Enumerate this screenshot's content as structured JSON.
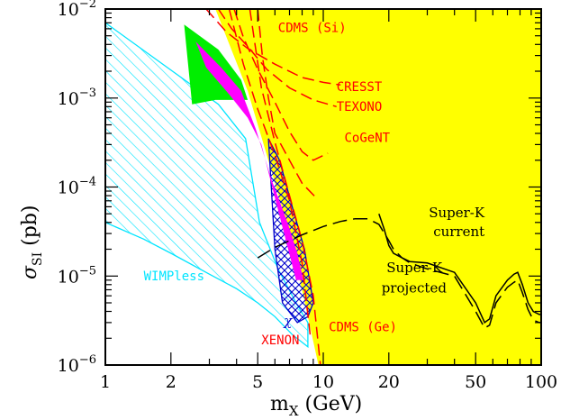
{
  "chart_data": {
    "type": "line",
    "xscale": "log",
    "yscale": "log",
    "xlim": [
      1,
      100
    ],
    "ylim": [
      1e-06,
      0.01
    ],
    "xlabel": "m_X (GeV)",
    "ylabel": "σ_SI (pb)",
    "x_ticks": [
      {
        "value": 1,
        "label": "1"
      },
      {
        "value": 2,
        "label": "2"
      },
      {
        "value": 5,
        "label": "5"
      },
      {
        "value": 10,
        "label": "10"
      },
      {
        "value": 20,
        "label": "20"
      },
      {
        "value": 50,
        "label": "50"
      },
      {
        "value": 100,
        "label": "100"
      }
    ],
    "y_ticks": [
      {
        "value": 1e-06,
        "base": "10",
        "exp": "−6"
      },
      {
        "value": 1e-05,
        "base": "10",
        "exp": "−5"
      },
      {
        "value": 0.0001,
        "base": "10",
        "exp": "−4"
      },
      {
        "value": 0.001,
        "base": "10",
        "exp": "−3"
      },
      {
        "value": 0.01,
        "base": "10",
        "exp": "−2"
      }
    ],
    "colors": {
      "excluded": "#ffff00",
      "limits": "#ff0000",
      "wimpless": "#00e5ff",
      "neutralino": "#0000cc",
      "green_region": "#00ee00",
      "magenta_region": "#ff00ff",
      "superk": "#000000"
    },
    "regions": [
      {
        "name": "excluded",
        "color": "#ffff00",
        "points": [
          [
            3.2,
            0.01
          ],
          [
            4.5,
            0.0012
          ],
          [
            5.8,
            0.00015
          ],
          [
            7,
            3e-05
          ],
          [
            8.1,
            6e-06
          ],
          [
            9.5,
            1e-06
          ],
          [
            100,
            1e-06
          ],
          [
            100,
            0.01
          ]
        ]
      },
      {
        "name": "WIMPless",
        "color": "#00e5ff",
        "points": [
          [
            1,
            0.007
          ],
          [
            3.3,
            0.00085
          ],
          [
            4.4,
            0.00035
          ],
          [
            5.1,
            4e-05
          ],
          [
            6.2,
            1.2e-05
          ],
          [
            7.5,
            5e-06
          ],
          [
            8.5,
            3e-06
          ],
          [
            8.5,
            1.6e-06
          ],
          [
            7.2,
            2.2e-06
          ],
          [
            6,
            3.5e-06
          ],
          [
            5,
            5e-06
          ],
          [
            4,
            7.2e-06
          ],
          [
            3,
            1.05e-05
          ],
          [
            2,
            1.8e-05
          ],
          [
            1.5,
            2.6e-05
          ],
          [
            1,
            4e-05
          ]
        ]
      },
      {
        "name": "neutralino",
        "color": "#0000cc",
        "points": [
          [
            5.6,
            0.00035
          ],
          [
            6.3,
            0.0002
          ],
          [
            7.2,
            6e-05
          ],
          [
            8.2,
            2e-05
          ],
          [
            9,
            5e-06
          ],
          [
            8.5,
            3.5e-06
          ],
          [
            7.6,
            3e-06
          ],
          [
            6.5,
            5e-06
          ],
          [
            6,
            2e-05
          ]
        ]
      },
      {
        "name": "green",
        "color": "#00ee00",
        "points": [
          [
            2.3,
            0.0067
          ],
          [
            3.3,
            0.0035
          ],
          [
            4.2,
            0.0016
          ],
          [
            4.5,
            0.00095
          ],
          [
            3.2,
            0.00095
          ],
          [
            2.5,
            0.00085
          ]
        ]
      },
      {
        "name": "magenta",
        "color": "#ff00ff",
        "points": [
          [
            2.6,
            0.0043
          ],
          [
            3.4,
            0.0022
          ],
          [
            4.2,
            0.0012
          ],
          [
            4.9,
            0.00045
          ],
          [
            5.8,
            0.00012
          ],
          [
            6.9,
            3.8e-05
          ],
          [
            7.6,
            1.8e-05
          ],
          [
            8.1,
            9e-06
          ],
          [
            7.5,
            9e-06
          ],
          [
            6.9,
            2e-05
          ],
          [
            6.1,
            6.5e-05
          ],
          [
            5.2,
            0.0003
          ],
          [
            4.5,
            0.0006
          ],
          [
            3.7,
            0.0011
          ],
          [
            2.9,
            0.0022
          ]
        ]
      }
    ],
    "series": [
      {
        "name": "CDMS (Si)",
        "style": "dashed",
        "color": "#ff0000",
        "x": [
          5,
          5.25,
          5.6,
          6,
          7,
          8,
          9.3
        ],
        "y": [
          0.01,
          0.003,
          0.001,
          0.0004,
          0.0002,
          0.00011,
          7.5e-05
        ]
      },
      {
        "name": "CRESST",
        "style": "dashed",
        "color": "#ff0000",
        "x": [
          2.9,
          3.6,
          4.5,
          6,
          8,
          10,
          12
        ],
        "y": [
          0.01,
          0.0055,
          0.0036,
          0.0024,
          0.0017,
          0.0015,
          0.0014
        ]
      },
      {
        "name": "TEXONO",
        "style": "dashed",
        "color": "#ff0000",
        "x": [
          3.3,
          3.8,
          4.5,
          5.5,
          7,
          9,
          11.5
        ],
        "y": [
          0.01,
          0.006,
          0.0038,
          0.0021,
          0.0013,
          0.00095,
          0.0008
        ]
      },
      {
        "name": "CoGeNT",
        "style": "dashed",
        "color": "#ff0000",
        "x": [
          3.9,
          4.3,
          5,
          6,
          7,
          8,
          9,
          10.5
        ],
        "y": [
          0.01,
          0.0048,
          0.0021,
          0.0009,
          0.00042,
          0.00025,
          0.0002,
          0.00024
        ]
      },
      {
        "name": "XENON",
        "style": "dashed",
        "color": "#ff0000",
        "x": [
          3.7,
          4.3,
          5,
          6,
          7,
          8,
          8.7
        ],
        "y": [
          0.01,
          0.0024,
          0.00075,
          0.00023,
          7e-05,
          1.4e-05,
          2.2e-06
        ]
      },
      {
        "name": "CDMS (Ge)",
        "style": "dashed",
        "color": "#ff0000",
        "x": [
          4.6,
          5.2,
          6,
          7,
          8,
          9,
          9.7
        ],
        "y": [
          0.01,
          0.0013,
          0.00032,
          8e-05,
          2.5e-05,
          6e-06,
          1e-06
        ]
      },
      {
        "name": "Super-K current",
        "style": "solid",
        "color": "#000000",
        "x": [
          18,
          19,
          20,
          21,
          23,
          25,
          30,
          40,
          50,
          55,
          58,
          62,
          70,
          75,
          78,
          82,
          87,
          92,
          98,
          100
        ],
        "y": [
          5e-05,
          3.4e-05,
          2.2e-05,
          1.8e-05,
          1.6e-05,
          1.45e-05,
          1.4e-05,
          1.1e-05,
          5e-06,
          3e-06,
          3.3e-06,
          6e-06,
          9e-06,
          1.05e-05,
          1.1e-05,
          8e-06,
          5e-06,
          4e-06,
          3.7e-06,
          3.7e-06
        ]
      },
      {
        "name": "Super-K projected",
        "style": "longdash",
        "color": "#000000",
        "x": [
          5,
          6,
          8,
          10,
          12,
          14,
          16,
          18,
          20,
          21,
          23,
          25,
          30,
          40,
          50,
          55,
          58,
          62,
          70,
          75,
          78,
          82,
          87,
          92,
          98,
          100
        ],
        "y": [
          1.6e-05,
          2.1e-05,
          2.9e-05,
          3.6e-05,
          4.1e-05,
          4.4e-05,
          4.4e-05,
          3.8e-05,
          2.5e-05,
          2e-05,
          1.6e-05,
          1.4e-05,
          1.2e-05,
          1e-05,
          4e-06,
          2.6e-06,
          2.8e-06,
          5e-06,
          7.5e-06,
          8.5e-06,
          9e-06,
          6.5e-06,
          4.2e-06,
          3.2e-06,
          3e-06,
          3e-06
        ]
      }
    ],
    "annotations": [
      {
        "text": "CDMS (Si)",
        "x": 6.2,
        "y": 0.0055,
        "color": "#ff0000",
        "font": "mono"
      },
      {
        "text": "CRESST",
        "x": 11.5,
        "y": 0.0012,
        "color": "#ff0000",
        "font": "mono"
      },
      {
        "text": "TEXONO",
        "x": 11.5,
        "y": 0.00072,
        "color": "#ff0000",
        "font": "mono"
      },
      {
        "text": "CoGeNT",
        "x": 12.5,
        "y": 0.00032,
        "color": "#ff0000",
        "font": "mono"
      },
      {
        "text": "Super-K",
        "x": 30.5,
        "y": 4.6e-05,
        "color": "#000000",
        "font": "serif"
      },
      {
        "text": "current",
        "x": 32,
        "y": 2.8e-05,
        "color": "#000000",
        "font": "serif"
      },
      {
        "text": "Super-K",
        "x": 19.5,
        "y": 1.1e-05,
        "color": "#000000",
        "font": "serif"
      },
      {
        "text": "projected",
        "x": 18.5,
        "y": 6.5e-06,
        "color": "#000000",
        "font": "serif"
      },
      {
        "text": "WIMPless",
        "x": 1.5,
        "y": 9e-06,
        "color": "#00e5ff",
        "font": "mono"
      },
      {
        "text": "χ",
        "x": 6.6,
        "y": 2.8e-06,
        "color": "#0000cc",
        "font": "serif-large"
      },
      {
        "text": "XENON",
        "x": 5.2,
        "y": 1.7e-06,
        "color": "#ff0000",
        "font": "mono"
      },
      {
        "text": "CDMS (Ge)",
        "x": 10.6,
        "y": 2.4e-06,
        "color": "#ff0000",
        "font": "mono"
      }
    ]
  }
}
